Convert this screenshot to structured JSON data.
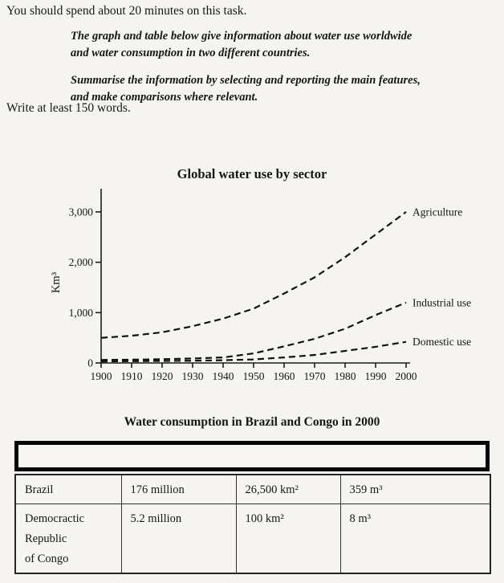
{
  "page": {
    "bg_color": "#f5f4f0",
    "ink_color": "#161616",
    "task_instruction": "You should spend about 20 minutes on this task.",
    "prompt_paragraph1": "The graph and table below give information about water use worldwide\nand water consumption in two different countries.",
    "prompt_paragraph2": "Summarise the information by selecting and reporting the main features,\nand make comparisons where relevant.",
    "word_count_note": "Write at least 150 words."
  },
  "chart_data": {
    "type": "line",
    "title": "Global water use by sector",
    "ylabel": "Km³",
    "xlabel": "",
    "line_style": "dashed",
    "line_color": "#121212",
    "grid": false,
    "legend_position": "line-end-labels",
    "x": [
      1900,
      1910,
      1920,
      1930,
      1940,
      1950,
      1960,
      1970,
      1980,
      1990,
      2000
    ],
    "xtick_labels": [
      "1900",
      "1910",
      "1920",
      "1930",
      "1940",
      "1950",
      "1960",
      "1970",
      "1980",
      "1990",
      "2000"
    ],
    "yticks": [
      3000,
      2000,
      1000,
      0
    ],
    "ytick_labels": [
      "3,000",
      "2,000",
      "1,000",
      "0"
    ],
    "ylim": [
      0,
      3450
    ],
    "series": [
      {
        "name": "Agriculture",
        "values": [
          500,
          540,
          610,
          730,
          880,
          1080,
          1380,
          1700,
          2100,
          2550,
          3000
        ]
      },
      {
        "name": "Industrial use",
        "values": [
          60,
          65,
          75,
          90,
          110,
          190,
          330,
          480,
          680,
          950,
          1200
        ]
      },
      {
        "name": "Domestic use",
        "values": [
          30,
          35,
          40,
          45,
          55,
          70,
          110,
          160,
          240,
          320,
          420
        ]
      }
    ]
  },
  "table": {
    "title": "Water consumption in Brazil and Congo in 2000",
    "header_cells": [
      "",
      "",
      "",
      ""
    ],
    "rows": [
      [
        "Brazil",
        "176 million",
        "26,500 km²",
        "359 m³"
      ],
      [
        "Democractic\nRepublic\nof Congo",
        "5.2 million",
        "100 km²",
        "8 m³"
      ]
    ]
  }
}
